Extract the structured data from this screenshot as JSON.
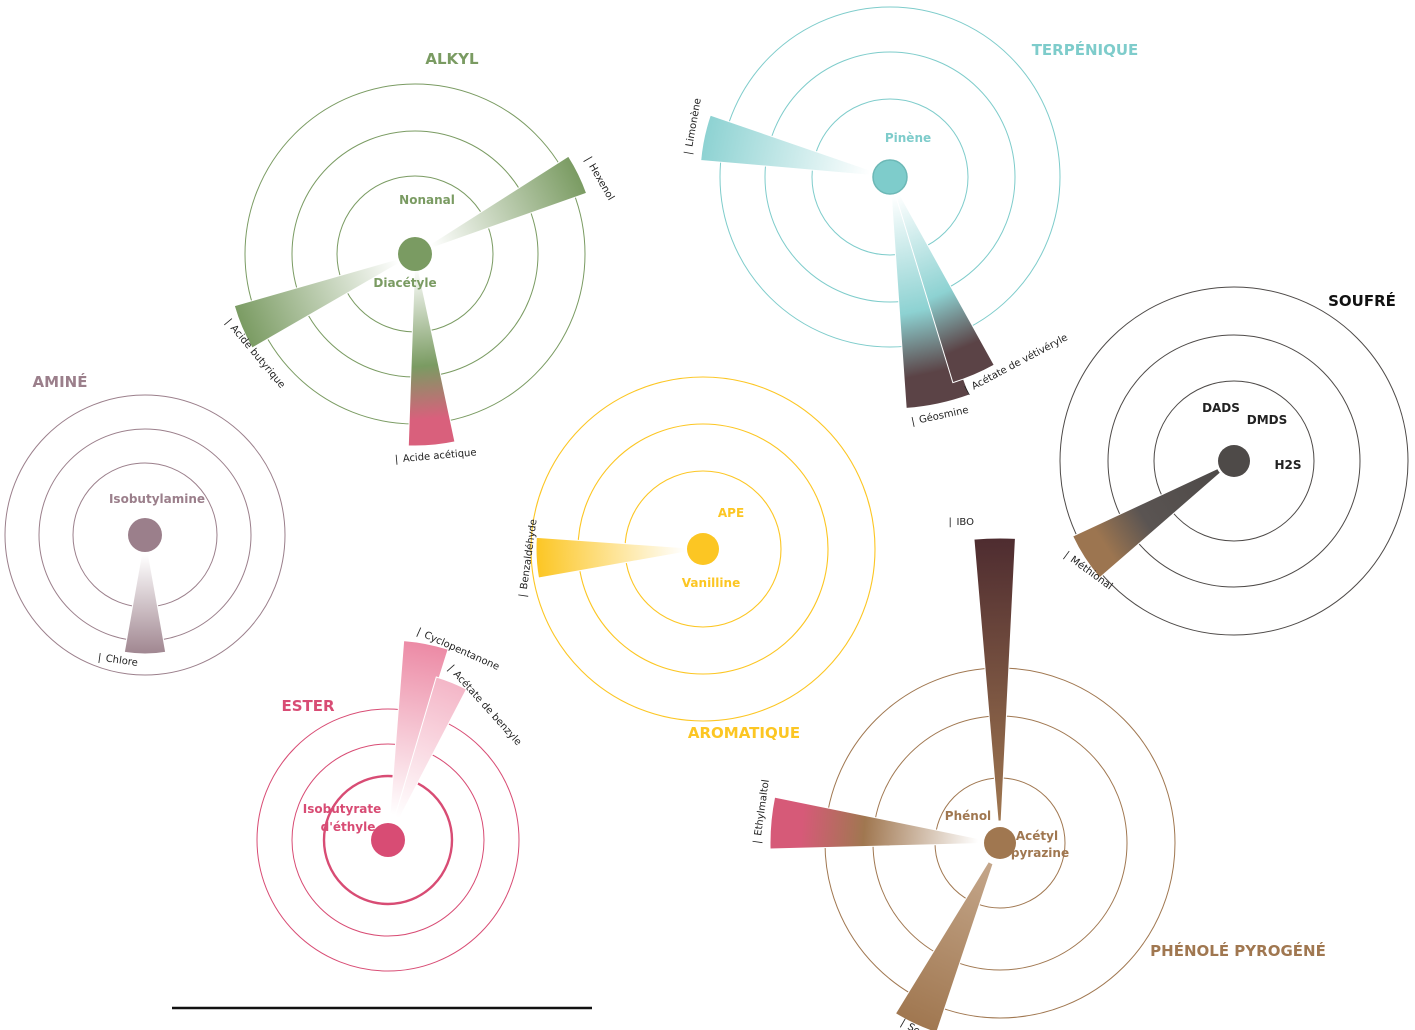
{
  "families": [
    {
      "id": "alkyl",
      "title": "ALKYL",
      "color": "#7a9b62",
      "center_labels": [
        "Nonanal",
        "Diacétyle"
      ],
      "petals": [
        {
          "label": "Hexenol",
          "from": "#ffffff",
          "to": "#7a9b62"
        },
        {
          "label": "Acide butyrique",
          "from": "#ffffff",
          "to": "#7a9b62"
        },
        {
          "label": "Acide acétique",
          "from": "#ffffff",
          "to": "#7a9b62",
          "tip": "#d9607c"
        }
      ]
    },
    {
      "id": "terpenique",
      "title": "TERPÉNIQUE",
      "color": "#7ecccb",
      "center_labels": [
        "Pinène"
      ],
      "petals": [
        {
          "label": "Limonène",
          "from": "#ffffff",
          "to": "#8dd2d2"
        },
        {
          "label": "Géosmine",
          "from": "#ffffff",
          "to": "#8dd2d2",
          "tip": "#5b4346"
        },
        {
          "label": "Acétate de vétivéryle",
          "from": "#ffffff",
          "to": "#8dd2d2",
          "tip": "#5b4346"
        }
      ]
    },
    {
      "id": "soufre",
      "title": "SOUFRÉ",
      "color": "#4e4a48",
      "center_labels": [
        "DADS",
        "DMDS",
        "H2S"
      ],
      "petals": [
        {
          "label": "Méthional",
          "from": "#4e4a48",
          "to": "#5a5452",
          "tip": "#9c7550"
        }
      ]
    },
    {
      "id": "amine",
      "title": "AMINÉ",
      "color": "#9b7f8b",
      "center_labels": [
        "Isobutylamine"
      ],
      "petals": [
        {
          "label": "Chlore",
          "from": "#ffffff",
          "to": "#a08690"
        }
      ]
    },
    {
      "id": "aromatique",
      "title": "AROMATIQUE",
      "color": "#fcc623",
      "center_labels": [
        "APE",
        "Vanilline"
      ],
      "petals": [
        {
          "label": "Benzaldéhyde",
          "from": "#ffffff",
          "to": "#fcc623"
        }
      ]
    },
    {
      "id": "ester",
      "title": "ESTER",
      "color": "#d84c74",
      "center_labels": [
        "Isobutyrate",
        "d'éthyle"
      ],
      "petals": [
        {
          "label": "Cyclopentanone",
          "from": "#ffffff",
          "to": "#ec8aa5"
        },
        {
          "label": "Acétate de benzyle",
          "from": "#ffffff",
          "to": "#f4b6c7"
        }
      ]
    },
    {
      "id": "phenole",
      "title": "PHÉNOLÉ PYROGÉNÉ",
      "color": "#a07750",
      "center_labels": [
        "Phénol",
        "Acétyl",
        "pyrazine"
      ],
      "petals": [
        {
          "label": "IBO",
          "from": "#a07750",
          "to": "#4e2c30"
        },
        {
          "label": "Ethylmaltol",
          "from": "#ffffff",
          "to": "#a07750",
          "tip": "#d65a78"
        },
        {
          "label": "Scatol",
          "from": "#c4a68a",
          "to": "#a07750"
        }
      ]
    }
  ]
}
